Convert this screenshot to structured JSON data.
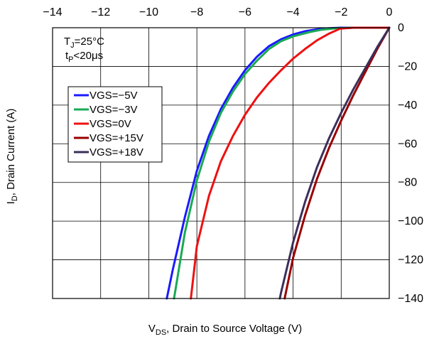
{
  "chart_data": {
    "type": "line",
    "xlabel_main": "V",
    "xlabel_sub": "DS",
    "xlabel_rest": ", Drain to Source Voltage (V)",
    "ylabel_main": "I",
    "ylabel_sub": "D",
    "ylabel_rest": ", Drain Current (A)",
    "xlim": [
      -14,
      0
    ],
    "ylim": [
      -140,
      0
    ],
    "x_ticks": [
      -14,
      -12,
      -10,
      -8,
      -6,
      -4,
      -2,
      0
    ],
    "x_tick_labels": [
      "−14",
      "−12",
      "−10",
      "−8",
      "−6",
      "−4",
      "−2",
      "0"
    ],
    "y_ticks": [
      0,
      -20,
      -40,
      -60,
      -80,
      -100,
      -120,
      -140
    ],
    "y_tick_labels": [
      "0",
      "−20",
      "−40",
      "−60",
      "−80",
      "−100",
      "−120",
      "−140"
    ],
    "grid": true,
    "x_axis_position": "top",
    "y_axis_position": "right",
    "legend_position": "left",
    "annotation_tj_main": "T",
    "annotation_tj_sub": "J",
    "annotation_tj_rest": "=25°C",
    "annotation_tp_main": "t",
    "annotation_tp_sub": "P",
    "annotation_tp_rest": "<20μs",
    "series": [
      {
        "name": "VGS=−5V",
        "color": "#1a1aff",
        "points": [
          [
            0,
            0
          ],
          [
            -1,
            0
          ],
          [
            -2,
            0
          ],
          [
            -2.5,
            -0.3
          ],
          [
            -3,
            -0.8
          ],
          [
            -3.5,
            -1.8
          ],
          [
            -4,
            -3.5
          ],
          [
            -4.5,
            -6
          ],
          [
            -5,
            -9.5
          ],
          [
            -5.5,
            -15
          ],
          [
            -6,
            -22
          ],
          [
            -6.5,
            -31
          ],
          [
            -7,
            -42
          ],
          [
            -7.5,
            -56
          ],
          [
            -8,
            -74
          ],
          [
            -8.5,
            -98
          ],
          [
            -9,
            -125
          ],
          [
            -9.25,
            -140
          ]
        ]
      },
      {
        "name": "VGS=−3V",
        "color": "#1aaa55",
        "points": [
          [
            0,
            0
          ],
          [
            -1.5,
            0
          ],
          [
            -2.2,
            -0.3
          ],
          [
            -2.8,
            -1
          ],
          [
            -3.3,
            -2.2
          ],
          [
            -4,
            -4.5
          ],
          [
            -4.5,
            -7
          ],
          [
            -5,
            -11
          ],
          [
            -5.5,
            -17
          ],
          [
            -6,
            -24
          ],
          [
            -6.5,
            -33
          ],
          [
            -7,
            -44
          ],
          [
            -7.5,
            -59
          ],
          [
            -8,
            -79
          ],
          [
            -8.5,
            -106
          ],
          [
            -8.95,
            -140
          ]
        ]
      },
      {
        "name": "VGS=0V",
        "color": "#ee1111",
        "points": [
          [
            0,
            0
          ],
          [
            -1.5,
            0
          ],
          [
            -2.05,
            -0.5
          ],
          [
            -2.5,
            -3
          ],
          [
            -3,
            -6.5
          ],
          [
            -3.5,
            -11
          ],
          [
            -4,
            -16
          ],
          [
            -4.5,
            -22
          ],
          [
            -5,
            -28.5
          ],
          [
            -5.5,
            -36
          ],
          [
            -6,
            -45
          ],
          [
            -6.5,
            -56
          ],
          [
            -7,
            -69
          ],
          [
            -7.5,
            -87
          ],
          [
            -8,
            -113
          ],
          [
            -8.25,
            -140
          ]
        ]
      },
      {
        "name": "VGS=+15V",
        "color": "#990000",
        "points": [
          [
            0,
            0
          ],
          [
            -0.5,
            -11
          ],
          [
            -1,
            -23
          ],
          [
            -1.5,
            -35
          ],
          [
            -2,
            -48
          ],
          [
            -2.5,
            -62
          ],
          [
            -3,
            -78
          ],
          [
            -3.5,
            -97
          ],
          [
            -4,
            -119
          ],
          [
            -4.35,
            -140
          ]
        ]
      },
      {
        "name": "VGS=+18V",
        "color": "#3c2f5a",
        "points": [
          [
            0,
            0
          ],
          [
            -0.5,
            -10
          ],
          [
            -1,
            -21
          ],
          [
            -1.5,
            -32
          ],
          [
            -2,
            -44
          ],
          [
            -2.5,
            -57
          ],
          [
            -3,
            -72
          ],
          [
            -3.5,
            -90
          ],
          [
            -4,
            -111
          ],
          [
            -4.5,
            -137
          ],
          [
            -4.55,
            -140
          ]
        ]
      }
    ]
  }
}
